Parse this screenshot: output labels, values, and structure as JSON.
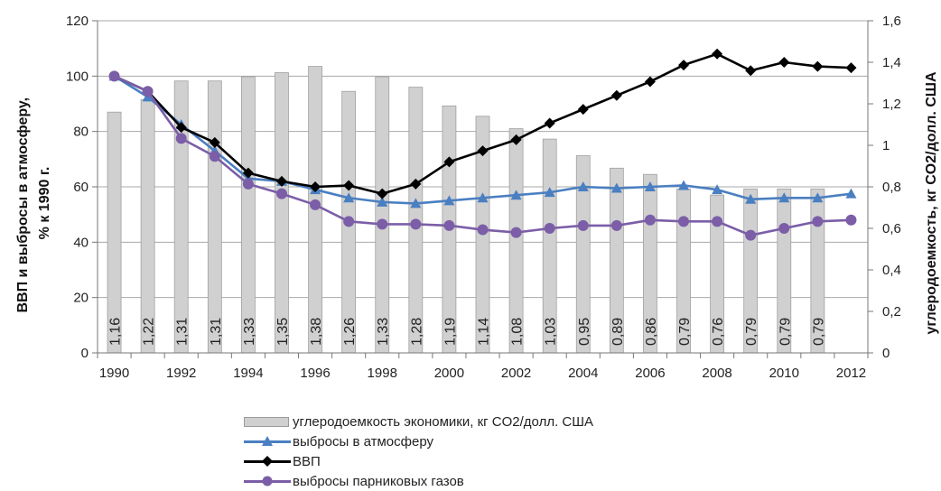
{
  "chart_data": {
    "type": "bar+line",
    "title": "",
    "x": [
      "1990",
      "1991",
      "1992",
      "1993",
      "1994",
      "1995",
      "1996",
      "1997",
      "1998",
      "1999",
      "2000",
      "2001",
      "2002",
      "2003",
      "2004",
      "2005",
      "2006",
      "2007",
      "2008",
      "2009",
      "2010",
      "2011",
      "2012"
    ],
    "x_tick_labels": [
      "1990",
      "1992",
      "1994",
      "1996",
      "1998",
      "2000",
      "2002",
      "2004",
      "2006",
      "2008",
      "2010",
      "2012"
    ],
    "ylabel_left": "ВВП и выбросы в атмосферу, % к 1990 г.",
    "ylabel_left_lines": [
      "ВВП и выбросы в атмосферу,",
      "% к 1990 г."
    ],
    "ylabel_right": "углеродоемкость, кг CO2/долл. США",
    "ylim_left": [
      0,
      120
    ],
    "ylim_right": [
      0,
      1.6
    ],
    "y_ticks_left": [
      "0",
      "20",
      "40",
      "60",
      "80",
      "100",
      "120"
    ],
    "y_ticks_right": [
      "0",
      "0,2",
      "0,4",
      "0,6",
      "0,8",
      "1",
      "1,2",
      "1,4",
      "1,6"
    ],
    "grid": true,
    "legend_position": "bottom",
    "bars": {
      "name": "углеродоемкость экономики, кг CO2/долл. США",
      "axis": "right",
      "color": "#d0d0d0",
      "values": [
        1.16,
        1.22,
        1.31,
        1.31,
        1.33,
        1.35,
        1.38,
        1.26,
        1.33,
        1.28,
        1.19,
        1.14,
        1.08,
        1.03,
        0.95,
        0.89,
        0.86,
        0.79,
        0.76,
        0.79,
        0.79,
        0.79,
        null
      ],
      "labels": [
        "1,16",
        "1,22",
        "1,31",
        "1,31",
        "1,33",
        "1,35",
        "1,38",
        "1,26",
        "1,33",
        "1,28",
        "1,19",
        "1,14",
        "1,08",
        "1,03",
        "0,95",
        "0,89",
        "0,86",
        "0,79",
        "0,76",
        "0,79",
        "0,79",
        "0,79",
        ""
      ]
    },
    "series": [
      {
        "name": "выбросы в атмосферу",
        "axis": "left",
        "color": "#4a7fc1",
        "marker": "triangle",
        "values": [
          100,
          92.5,
          82.5,
          73,
          63,
          62,
          59,
          56,
          54.5,
          54,
          55,
          56,
          57,
          58,
          60,
          59.5,
          60,
          60.5,
          59,
          55.5,
          56,
          56,
          57.5
        ]
      },
      {
        "name": "ВВП",
        "axis": "left",
        "color": "#000000",
        "marker": "diamond",
        "values": [
          100,
          94.5,
          81.5,
          76,
          65,
          62,
          60,
          60.5,
          57.5,
          61,
          69,
          73,
          77,
          83,
          88,
          93,
          98,
          104,
          108,
          102,
          105,
          103.5,
          103
        ]
      },
      {
        "name": "выбросы парниковых газов",
        "axis": "left",
        "color": "#7b5ea7",
        "marker": "circle",
        "values": [
          100,
          94.5,
          77.5,
          71,
          61,
          57.5,
          53.5,
          47.5,
          46.5,
          46.5,
          46,
          44.5,
          43.5,
          45,
          46,
          46,
          48,
          47.5,
          47.5,
          42.5,
          45,
          47.5,
          48
        ]
      }
    ]
  }
}
